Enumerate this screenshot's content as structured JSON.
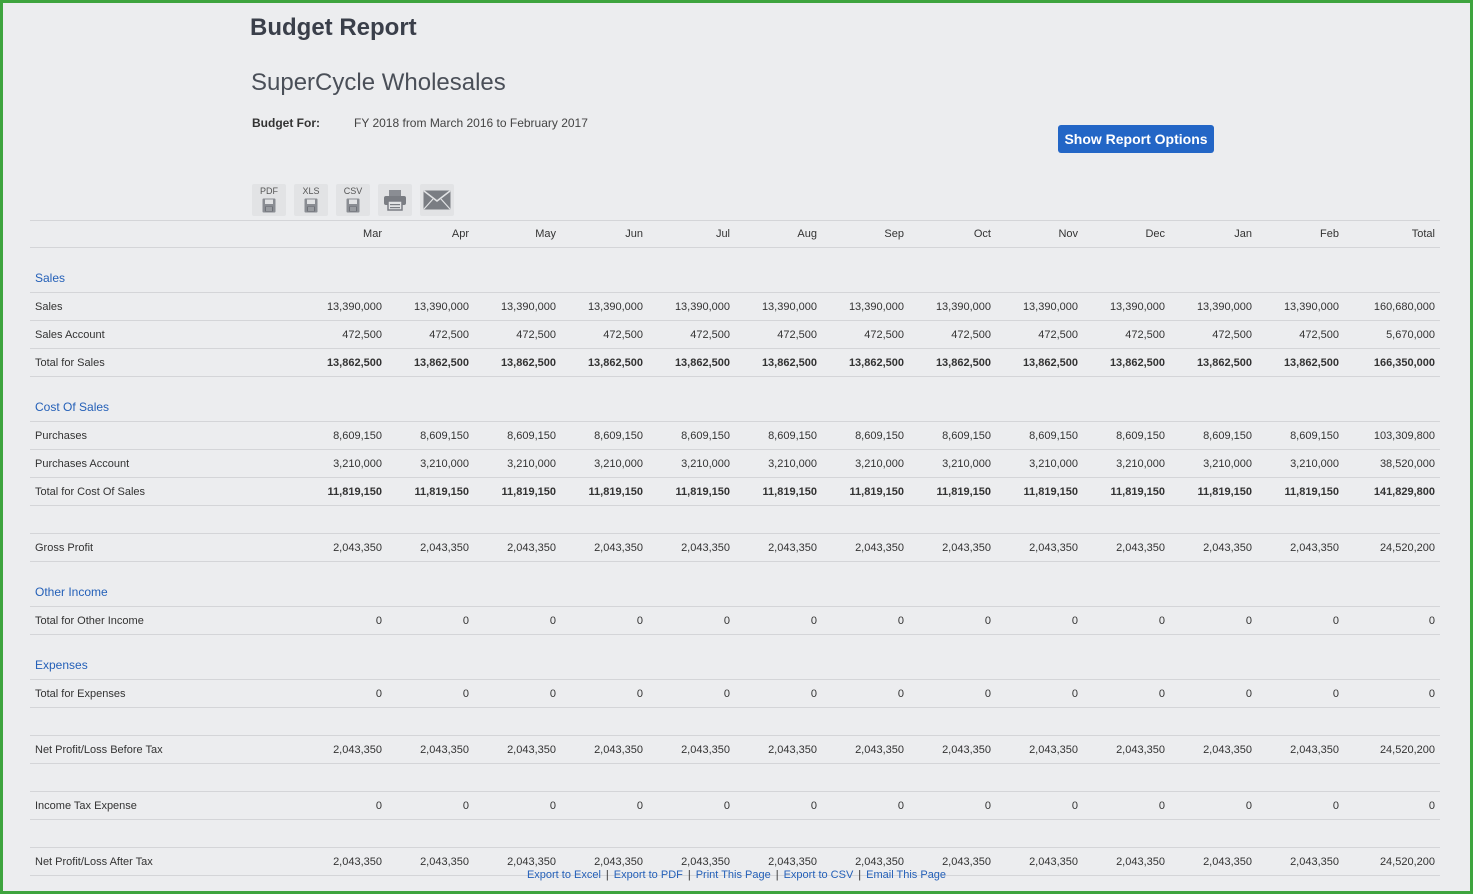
{
  "header": {
    "title": "Budget Report",
    "company": "SuperCycle Wholesales",
    "budget_for_label": "Budget For:",
    "budget_for_value": "FY 2018 from March 2016 to February 2017",
    "options_button": "Show Report Options"
  },
  "export": {
    "pdf": "PDF",
    "xls": "XLS",
    "csv": "CSV"
  },
  "columns": [
    "Mar",
    "Apr",
    "May",
    "Jun",
    "Jul",
    "Aug",
    "Sep",
    "Oct",
    "Nov",
    "Dec",
    "Jan",
    "Feb",
    "Total"
  ],
  "sections": {
    "sales": "Sales",
    "cost_of_sales": "Cost Of Sales",
    "other_income": "Other Income",
    "expenses": "Expenses"
  },
  "rows": {
    "sales": {
      "label": "Sales",
      "values": [
        "13,390,000",
        "13,390,000",
        "13,390,000",
        "13,390,000",
        "13,390,000",
        "13,390,000",
        "13,390,000",
        "13,390,000",
        "13,390,000",
        "13,390,000",
        "13,390,000",
        "13,390,000",
        "160,680,000"
      ]
    },
    "sales_account": {
      "label": "Sales Account",
      "values": [
        "472,500",
        "472,500",
        "472,500",
        "472,500",
        "472,500",
        "472,500",
        "472,500",
        "472,500",
        "472,500",
        "472,500",
        "472,500",
        "472,500",
        "5,670,000"
      ]
    },
    "total_sales": {
      "label": "Total for Sales",
      "values": [
        "13,862,500",
        "13,862,500",
        "13,862,500",
        "13,862,500",
        "13,862,500",
        "13,862,500",
        "13,862,500",
        "13,862,500",
        "13,862,500",
        "13,862,500",
        "13,862,500",
        "13,862,500",
        "166,350,000"
      ]
    },
    "purchases": {
      "label": "Purchases",
      "values": [
        "8,609,150",
        "8,609,150",
        "8,609,150",
        "8,609,150",
        "8,609,150",
        "8,609,150",
        "8,609,150",
        "8,609,150",
        "8,609,150",
        "8,609,150",
        "8,609,150",
        "8,609,150",
        "103,309,800"
      ]
    },
    "purchases_account": {
      "label": "Purchases Account",
      "values": [
        "3,210,000",
        "3,210,000",
        "3,210,000",
        "3,210,000",
        "3,210,000",
        "3,210,000",
        "3,210,000",
        "3,210,000",
        "3,210,000",
        "3,210,000",
        "3,210,000",
        "3,210,000",
        "38,520,000"
      ]
    },
    "total_cost_of_sales": {
      "label": "Total for Cost Of Sales",
      "values": [
        "11,819,150",
        "11,819,150",
        "11,819,150",
        "11,819,150",
        "11,819,150",
        "11,819,150",
        "11,819,150",
        "11,819,150",
        "11,819,150",
        "11,819,150",
        "11,819,150",
        "11,819,150",
        "141,829,800"
      ]
    },
    "gross_profit": {
      "label": "Gross Profit",
      "values": [
        "2,043,350",
        "2,043,350",
        "2,043,350",
        "2,043,350",
        "2,043,350",
        "2,043,350",
        "2,043,350",
        "2,043,350",
        "2,043,350",
        "2,043,350",
        "2,043,350",
        "2,043,350",
        "24,520,200"
      ]
    },
    "total_other_income": {
      "label": "Total for Other Income",
      "values": [
        "0",
        "0",
        "0",
        "0",
        "0",
        "0",
        "0",
        "0",
        "0",
        "0",
        "0",
        "0",
        "0"
      ]
    },
    "total_expenses": {
      "label": "Total for Expenses",
      "values": [
        "0",
        "0",
        "0",
        "0",
        "0",
        "0",
        "0",
        "0",
        "0",
        "0",
        "0",
        "0",
        "0"
      ]
    },
    "net_before_tax": {
      "label": "Net Profit/Loss Before Tax",
      "values": [
        "2,043,350",
        "2,043,350",
        "2,043,350",
        "2,043,350",
        "2,043,350",
        "2,043,350",
        "2,043,350",
        "2,043,350",
        "2,043,350",
        "2,043,350",
        "2,043,350",
        "2,043,350",
        "24,520,200"
      ]
    },
    "income_tax": {
      "label": "Income Tax Expense",
      "values": [
        "0",
        "0",
        "0",
        "0",
        "0",
        "0",
        "0",
        "0",
        "0",
        "0",
        "0",
        "0",
        "0"
      ]
    },
    "net_after_tax": {
      "label": "Net Profit/Loss After Tax",
      "values": [
        "2,043,350",
        "2,043,350",
        "2,043,350",
        "2,043,350",
        "2,043,350",
        "2,043,350",
        "2,043,350",
        "2,043,350",
        "2,043,350",
        "2,043,350",
        "2,043,350",
        "2,043,350",
        "24,520,200"
      ]
    }
  },
  "footer": {
    "links": [
      "Export to Excel",
      "Export to PDF",
      "Print This Page",
      "Export to CSV",
      "Email This Page"
    ],
    "separator": "|"
  },
  "colors": {
    "accent": "#2366c6",
    "link": "#2460b8",
    "frame": "#3ea43e",
    "background": "#ecedef"
  },
  "icons": [
    "save-disk-icon",
    "printer-icon",
    "envelope-icon"
  ]
}
